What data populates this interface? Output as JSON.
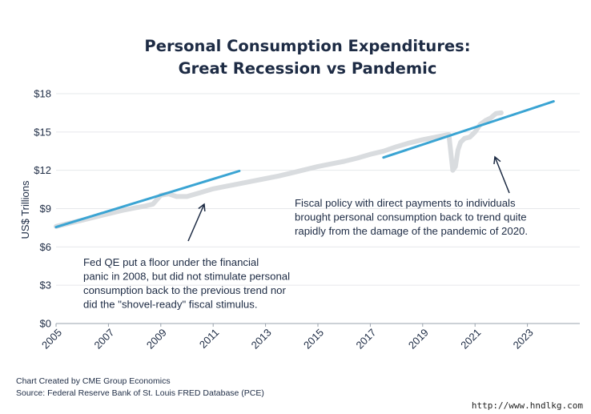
{
  "chart_data": {
    "type": "line",
    "title_line1": "Personal Consumption Expenditures:",
    "title_line2": "Great Recession vs Pandemic",
    "ylabel": "US$ Trillions",
    "xlabel": "",
    "xlim": [
      2005,
      2025
    ],
    "ylim": [
      0,
      18
    ],
    "y_ticks": [
      0,
      3,
      6,
      9,
      12,
      15,
      18
    ],
    "y_tick_labels": [
      "$0",
      "$3",
      "$6",
      "$9",
      "$12",
      "$15",
      "$18"
    ],
    "x_ticks": [
      2005,
      2007,
      2009,
      2011,
      2013,
      2015,
      2017,
      2019,
      2021,
      2023
    ],
    "x_tick_labels": [
      "2005",
      "2007",
      "2009",
      "2011",
      "2013",
      "2015",
      "2017",
      "2019",
      "2021",
      "2023"
    ],
    "grid": true,
    "series": [
      {
        "role": "actual",
        "color": "#d9dcdf",
        "x": [
          2005.0,
          2005.5,
          2006.0,
          2006.5,
          2007.0,
          2007.5,
          2008.0,
          2008.4,
          2008.7,
          2009.0,
          2009.3,
          2009.6,
          2010.0,
          2010.5,
          2011.0,
          2011.5,
          2012.0,
          2012.5,
          2013.0,
          2013.5,
          2014.0,
          2014.5,
          2015.0,
          2015.5,
          2016.0,
          2016.5,
          2017.0,
          2017.5,
          2018.0,
          2018.5,
          2019.0,
          2019.5,
          2020.0,
          2020.15,
          2020.25,
          2020.35,
          2020.45,
          2020.6,
          2020.8,
          2021.0,
          2021.2,
          2021.4,
          2021.6,
          2021.8,
          2022.0
        ],
        "y": [
          7.6,
          7.85,
          8.1,
          8.35,
          8.6,
          8.85,
          9.05,
          9.2,
          9.35,
          10.05,
          10.15,
          9.95,
          9.95,
          10.25,
          10.55,
          10.75,
          10.95,
          11.15,
          11.35,
          11.55,
          11.8,
          12.05,
          12.3,
          12.5,
          12.7,
          12.95,
          13.25,
          13.5,
          13.85,
          14.15,
          14.4,
          14.6,
          14.8,
          12.0,
          12.3,
          13.6,
          14.2,
          14.5,
          14.6,
          15.0,
          15.6,
          15.9,
          16.1,
          16.45,
          16.5
        ]
      },
      {
        "role": "trend_pre_recession",
        "color": "#3aa4d3",
        "x": [
          2005.0,
          2012.0
        ],
        "y": [
          7.55,
          11.95
        ]
      },
      {
        "role": "trend_pre_pandemic",
        "color": "#3aa4d3",
        "x": [
          2017.5,
          2024.0
        ],
        "y": [
          13.0,
          17.4
        ]
      }
    ],
    "annotations": [
      {
        "name": "recession-annotation",
        "lines": [
          "Fed QE put a floor under the financial",
          "panic in 2008, but did not stimulate personal",
          "consumption back to the previous trend nor",
          "did the \"shovel-ready\" fiscal stimulus."
        ]
      },
      {
        "name": "pandemic-annotation",
        "lines": [
          "Fiscal policy with direct payments to individuals",
          "brought personal consumption back to trend quite",
          "rapidly from the damage of the pandemic of 2020."
        ]
      }
    ]
  },
  "footer": {
    "line1": "Chart Created by CME Group Economics",
    "line2": "Source: Federal Reserve Bank of St. Louis FRED Database (PCE)"
  },
  "watermark": "http://www.hndlkg.com"
}
